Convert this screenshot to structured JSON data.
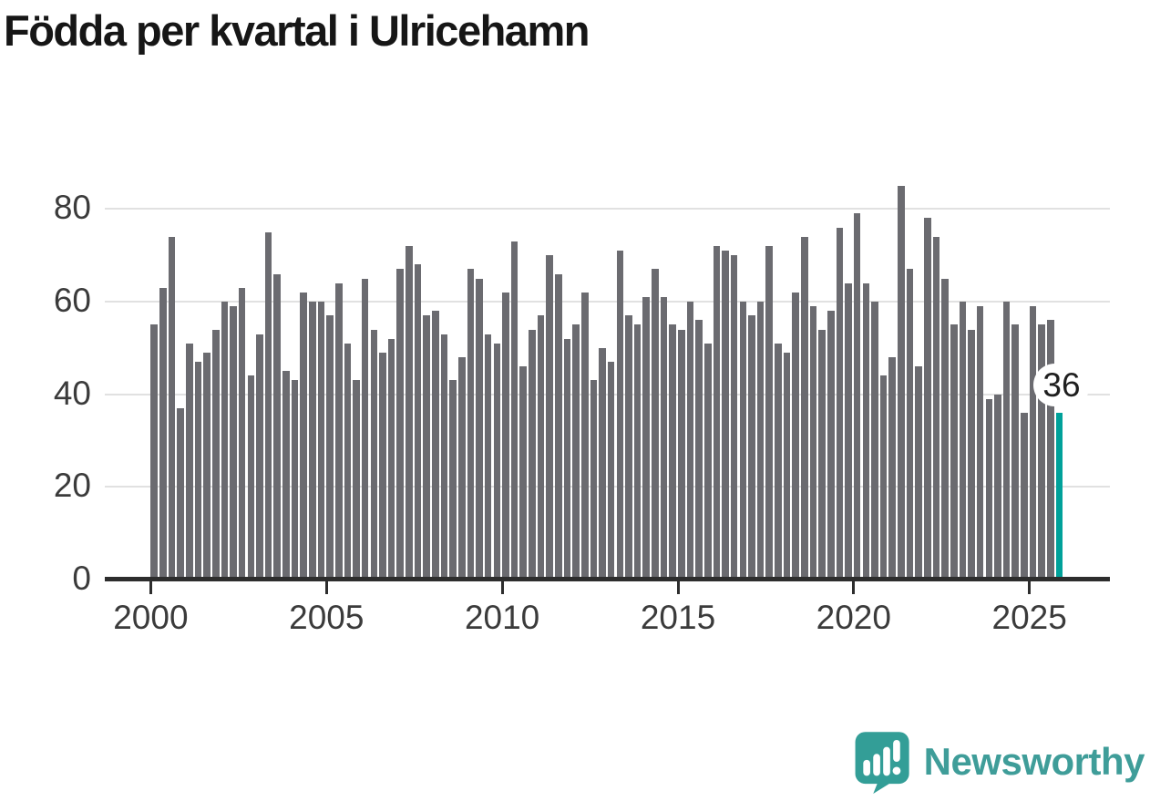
{
  "title": "Födda per kvartal i Ulricehamn",
  "annotation": {
    "label": "36"
  },
  "branding": {
    "name": "Newsworthy",
    "icon": "speech-bubble-bar-chart",
    "color": "#3f9d99",
    "icon_fill": "#339e97"
  },
  "chart_data": {
    "type": "bar",
    "title": "Födda per kvartal i Ulricehamn",
    "x_unit": "quarter",
    "start": "2000Q1",
    "end": "2025Q4",
    "start_year": 2000,
    "values": [
      55,
      63,
      74,
      37,
      51,
      47,
      49,
      54,
      60,
      59,
      63,
      44,
      53,
      75,
      66,
      45,
      43,
      62,
      60,
      60,
      57,
      64,
      51,
      43,
      65,
      54,
      49,
      52,
      67,
      72,
      68,
      57,
      58,
      53,
      43,
      48,
      67,
      65,
      53,
      51,
      62,
      73,
      46,
      54,
      57,
      70,
      66,
      52,
      55,
      62,
      43,
      50,
      47,
      71,
      57,
      55,
      61,
      67,
      61,
      55,
      54,
      60,
      56,
      51,
      72,
      71,
      70,
      60,
      57,
      60,
      72,
      51,
      49,
      62,
      74,
      59,
      54,
      58,
      76,
      64,
      79,
      64,
      60,
      44,
      48,
      85,
      67,
      46,
      78,
      74,
      65,
      55,
      60,
      54,
      59,
      39,
      40,
      60,
      55,
      36,
      59,
      55,
      56,
      36
    ],
    "highlight": {
      "index": 103,
      "quarter": "2025Q4",
      "value": 36,
      "label": "36"
    },
    "yticks": [
      0,
      20,
      40,
      60,
      80
    ],
    "xticks": [
      2000,
      2005,
      2010,
      2015,
      2020,
      2025
    ],
    "ylim": [
      0,
      86
    ],
    "grid": "horizontal",
    "legend": "none",
    "colors": {
      "bar": "#6b6b70",
      "highlight": "#00a19a",
      "grid": "#e1e1e1",
      "axis": "#2d2d2d"
    }
  }
}
